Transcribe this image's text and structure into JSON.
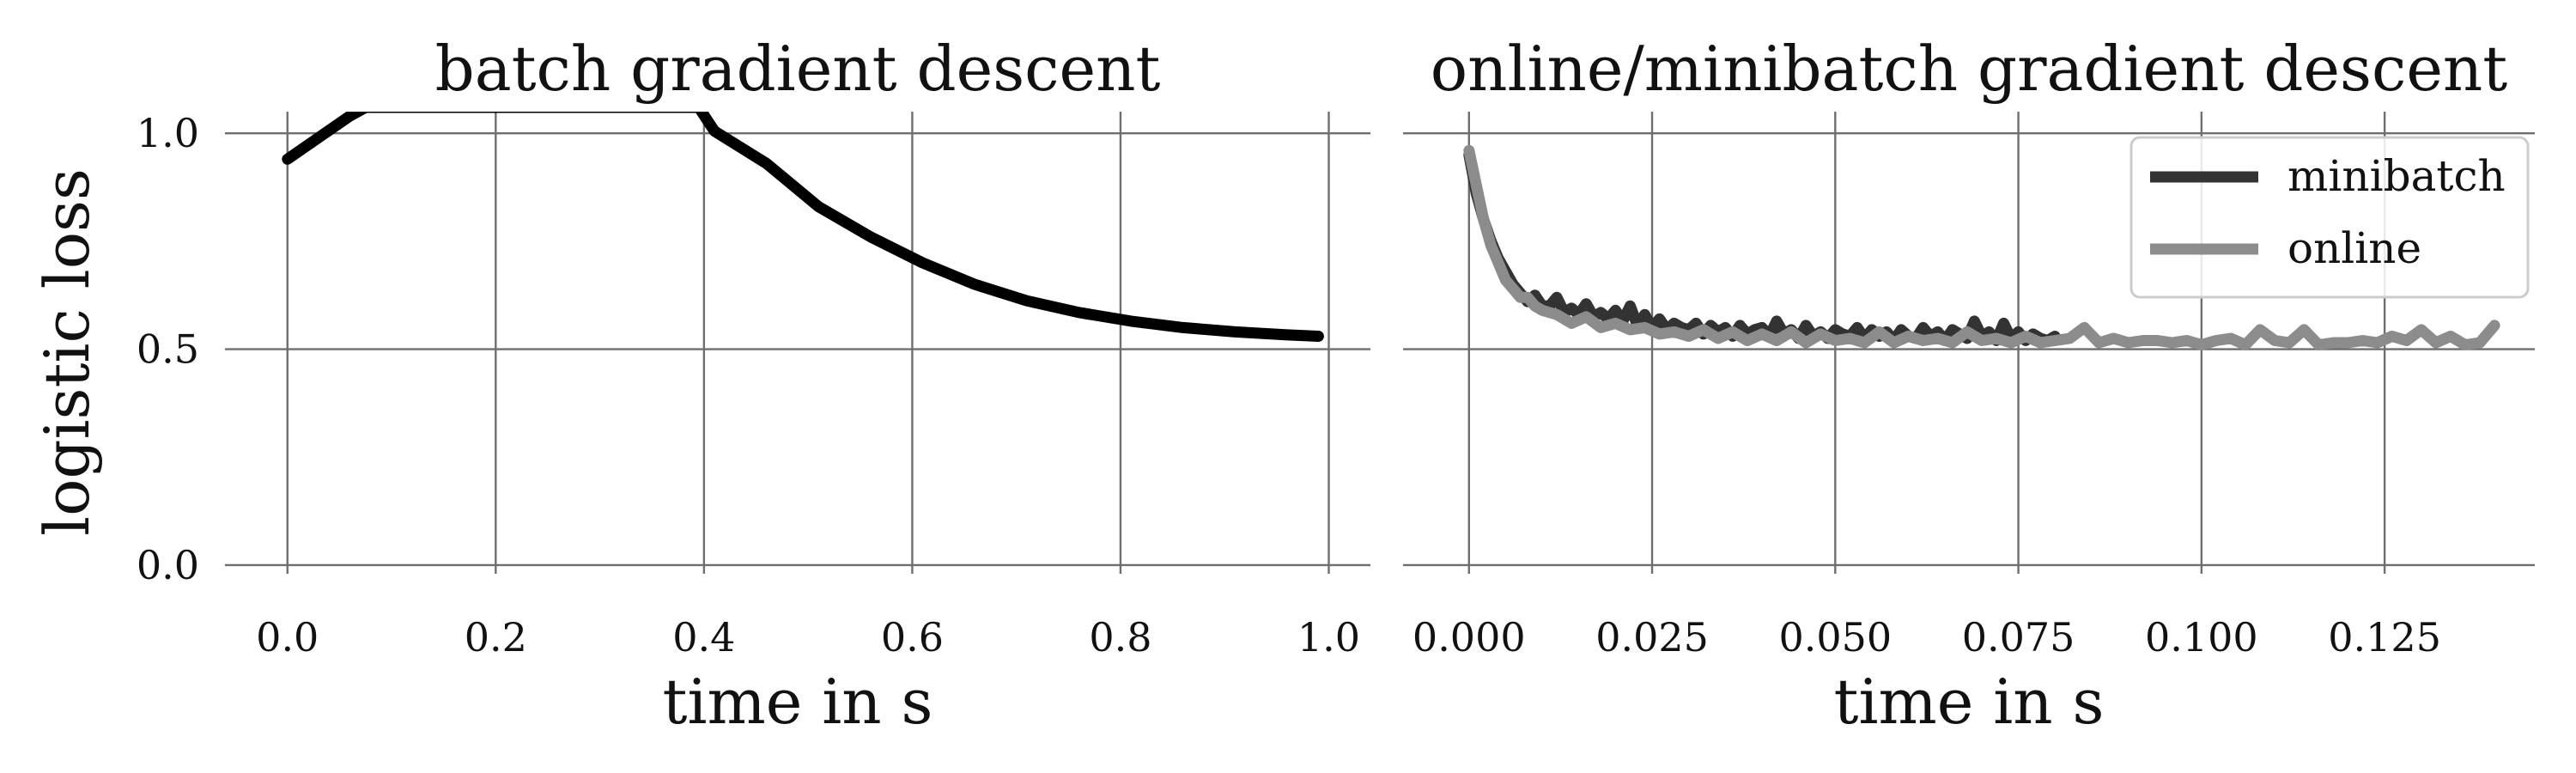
{
  "figure": {
    "ylabel": "logistic loss",
    "colors": {
      "grid": "#6e6e6e",
      "batch": "#000000",
      "minibatch": "#333333",
      "online": "#8c8c8c",
      "legend_border": "#cccccc"
    }
  },
  "chart_data": [
    {
      "type": "line",
      "title": "batch gradient descent",
      "xlabel": "time in s",
      "ylabel": "logistic loss",
      "xlim": [
        -0.06,
        1.04
      ],
      "ylim": [
        -0.02,
        1.05
      ],
      "xticks": [
        0.0,
        0.2,
        0.4,
        0.6,
        0.8,
        1.0
      ],
      "xtick_labels": [
        "0.0",
        "0.2",
        "0.4",
        "0.6",
        "0.8",
        "1.0"
      ],
      "yticks": [
        0.0,
        0.5,
        1.0
      ],
      "ytick_labels": [
        "0.0",
        "0.5",
        "1.0"
      ],
      "grid": true,
      "legend": null,
      "series": [
        {
          "color": "#000000",
          "x": [
            0.0,
            0.03,
            0.06,
            0.075,
            0.395,
            0.41,
            0.46,
            0.51,
            0.56,
            0.61,
            0.66,
            0.71,
            0.76,
            0.81,
            0.86,
            0.91,
            0.96,
            0.99
          ],
          "y": [
            0.94,
            0.99,
            1.04,
            1.06,
            1.06,
            1.005,
            0.93,
            0.83,
            0.76,
            0.7,
            0.65,
            0.612,
            0.585,
            0.565,
            0.55,
            0.54,
            0.533,
            0.53
          ]
        }
      ]
    },
    {
      "type": "line",
      "title": "online/minibatch gradient descent",
      "xlabel": "time in s",
      "xlim": [
        -0.009,
        0.1455
      ],
      "ylim": [
        -0.02,
        1.05
      ],
      "xticks": [
        0.0,
        0.025,
        0.05,
        0.075,
        0.1,
        0.125
      ],
      "xtick_labels": [
        "0.000",
        "0.025",
        "0.050",
        "0.075",
        "0.100",
        "0.125"
      ],
      "yticks": [
        0.0,
        0.5,
        1.0
      ],
      "grid": true,
      "legend": "top-right",
      "series": [
        {
          "name": "minibatch",
          "color": "#333333",
          "x": [
            0.0,
            0.001,
            0.002,
            0.003,
            0.004,
            0.005,
            0.006,
            0.007,
            0.008,
            0.009,
            0.01,
            0.011,
            0.012,
            0.013,
            0.014,
            0.015,
            0.016,
            0.017,
            0.018,
            0.019,
            0.02,
            0.021,
            0.022,
            0.023,
            0.024,
            0.025,
            0.026,
            0.027,
            0.028,
            0.029,
            0.03,
            0.031,
            0.032,
            0.033,
            0.034,
            0.035,
            0.036,
            0.037,
            0.038,
            0.039,
            0.04,
            0.041,
            0.042,
            0.043,
            0.044,
            0.045,
            0.046,
            0.047,
            0.048,
            0.049,
            0.05,
            0.051,
            0.052,
            0.053,
            0.054,
            0.055,
            0.056,
            0.057,
            0.058,
            0.059,
            0.06,
            0.061,
            0.062,
            0.063,
            0.064,
            0.065,
            0.066,
            0.067,
            0.068,
            0.069,
            0.07,
            0.071,
            0.072,
            0.073,
            0.074,
            0.075,
            0.076,
            0.077,
            0.078,
            0.079,
            0.08
          ],
          "y": [
            0.95,
            0.86,
            0.8,
            0.75,
            0.71,
            0.68,
            0.65,
            0.63,
            0.61,
            0.625,
            0.6,
            0.6,
            0.62,
            0.585,
            0.595,
            0.58,
            0.605,
            0.575,
            0.585,
            0.57,
            0.59,
            0.565,
            0.6,
            0.555,
            0.58,
            0.55,
            0.57,
            0.545,
            0.56,
            0.55,
            0.545,
            0.56,
            0.535,
            0.555,
            0.54,
            0.55,
            0.53,
            0.555,
            0.535,
            0.545,
            0.55,
            0.53,
            0.565,
            0.535,
            0.545,
            0.525,
            0.555,
            0.53,
            0.54,
            0.525,
            0.545,
            0.535,
            0.53,
            0.55,
            0.525,
            0.545,
            0.53,
            0.54,
            0.52,
            0.545,
            0.53,
            0.525,
            0.55,
            0.53,
            0.54,
            0.52,
            0.545,
            0.535,
            0.525,
            0.565,
            0.53,
            0.54,
            0.52,
            0.56,
            0.525,
            0.54,
            0.52,
            0.535,
            0.525,
            0.52,
            0.53
          ]
        },
        {
          "name": "online",
          "color": "#8c8c8c",
          "x": [
            0.0,
            0.001,
            0.002,
            0.003,
            0.004,
            0.005,
            0.006,
            0.007,
            0.008,
            0.009,
            0.01,
            0.012,
            0.014,
            0.016,
            0.018,
            0.02,
            0.022,
            0.024,
            0.026,
            0.028,
            0.03,
            0.032,
            0.034,
            0.036,
            0.038,
            0.04,
            0.042,
            0.044,
            0.046,
            0.048,
            0.05,
            0.052,
            0.054,
            0.056,
            0.058,
            0.06,
            0.062,
            0.064,
            0.066,
            0.068,
            0.07,
            0.072,
            0.074,
            0.076,
            0.078,
            0.08,
            0.082,
            0.084,
            0.086,
            0.088,
            0.09,
            0.092,
            0.094,
            0.096,
            0.098,
            0.1,
            0.102,
            0.104,
            0.106,
            0.108,
            0.11,
            0.112,
            0.114,
            0.116,
            0.118,
            0.12,
            0.122,
            0.124,
            0.126,
            0.128,
            0.13,
            0.132,
            0.134,
            0.136,
            0.138,
            0.14
          ],
          "y": [
            0.96,
            0.88,
            0.8,
            0.74,
            0.7,
            0.66,
            0.64,
            0.62,
            0.62,
            0.6,
            0.59,
            0.58,
            0.56,
            0.575,
            0.55,
            0.56,
            0.545,
            0.55,
            0.535,
            0.54,
            0.53,
            0.545,
            0.525,
            0.54,
            0.52,
            0.535,
            0.52,
            0.54,
            0.515,
            0.535,
            0.52,
            0.525,
            0.515,
            0.54,
            0.515,
            0.53,
            0.52,
            0.525,
            0.515,
            0.54,
            0.52,
            0.525,
            0.515,
            0.53,
            0.515,
            0.52,
            0.525,
            0.55,
            0.515,
            0.525,
            0.515,
            0.52,
            0.52,
            0.515,
            0.52,
            0.51,
            0.52,
            0.525,
            0.51,
            0.545,
            0.52,
            0.515,
            0.545,
            0.51,
            0.515,
            0.515,
            0.52,
            0.515,
            0.53,
            0.52,
            0.545,
            0.515,
            0.53,
            0.51,
            0.515,
            0.555
          ]
        }
      ]
    }
  ]
}
